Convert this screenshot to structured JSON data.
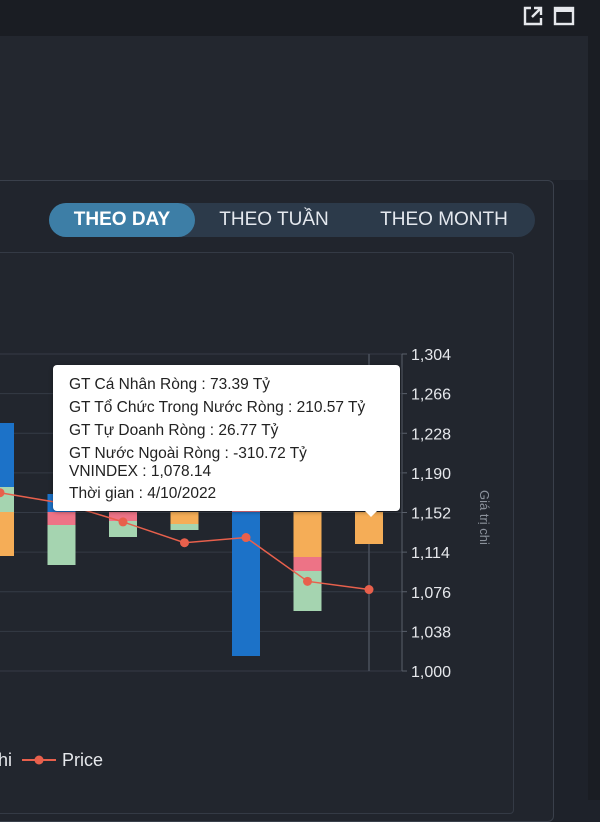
{
  "tabs": [
    {
      "label": "THEO DAY",
      "active": true
    },
    {
      "label": "THEO TUẦN",
      "active": false
    },
    {
      "label": "THEO MONTH",
      "active": false
    }
  ],
  "tooltip": {
    "rows": [
      "GT Cá Nhân Ròng  : 73.39 Tỷ",
      "GT Tổ Chức Trong Nước Ròng : 210.57 Tỷ",
      "GT Tự Doanh Ròng : 26.77 Tỷ",
      "GT Nước Ngoài Ròng : -310.72 Tỷ",
      "VNINDEX : 1,078.14",
      "Thời gian : 4/10/2022"
    ]
  },
  "legend": {
    "partial_label": "hi",
    "price_label": "Price",
    "price_color": "#e8604c"
  },
  "icons": [
    "open-external-icon",
    "maximize-icon"
  ],
  "chart_data": {
    "type": "bar",
    "ylabel": "Giá trị chi",
    "y_right_ticks": [
      "1,304",
      "1,266",
      "1,228",
      "1,190",
      "1,152",
      "1,114",
      "1,076",
      "1,038",
      "1,000"
    ],
    "y_right_range": [
      1000,
      1304
    ],
    "colors": {
      "ca_nhan": "#f5ad57",
      "to_chuc": "#ed7386",
      "tu_doanh": "#a5d4b0",
      "nuoc_ngoai": "#1c72c8",
      "price": "#e8604c"
    },
    "stacks": [
      {
        "index": 0,
        "pos": [
          0,
          0,
          25,
          64
        ],
        "neg": [
          44,
          0,
          0,
          0
        ]
      },
      {
        "index": 1,
        "pos": [
          0,
          0,
          0,
          18
        ],
        "neg": [
          0,
          13,
          40,
          0
        ]
      },
      {
        "index": 2,
        "pos": [
          0,
          0,
          0,
          0
        ],
        "neg": [
          0,
          9,
          16,
          0
        ]
      },
      {
        "index": 3,
        "pos": [
          0,
          0,
          0,
          0
        ],
        "neg": [
          12,
          0,
          6,
          0
        ]
      },
      {
        "index": 4,
        "pos": [
          0,
          4,
          0,
          0
        ],
        "neg": [
          0,
          0,
          0,
          144
        ]
      },
      {
        "index": 5,
        "pos": [
          0,
          0,
          0,
          0
        ],
        "neg": [
          45,
          14,
          40,
          0
        ]
      },
      {
        "index": 6,
        "pos": [
          0,
          0,
          0,
          0
        ],
        "neg": [
          32,
          0,
          0,
          0
        ]
      }
    ],
    "price_line": [
      1171,
      1161,
      1143,
      1123,
      1128,
      1086,
      1078.14
    ]
  }
}
